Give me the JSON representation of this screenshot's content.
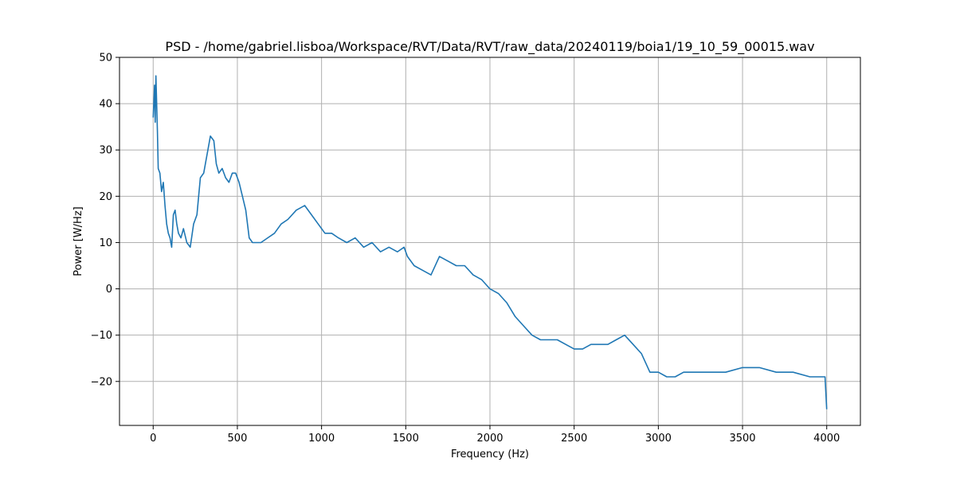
{
  "chart_data": {
    "type": "line",
    "title": "PSD - /home/gabriel.lisboa/Workspace/RVT/Data/RVT/raw_data/20240119/boia1/19_10_59_00015.wav",
    "xlabel": "Frequency (Hz)",
    "ylabel": "Power [W/Hz]",
    "xlim": [
      -200,
      4200
    ],
    "ylim": [
      -29.5,
      50
    ],
    "x_ticks": [
      0,
      500,
      1000,
      1500,
      2000,
      2500,
      3000,
      3500,
      4000
    ],
    "x_tick_labels": [
      "0",
      "500",
      "1000",
      "1500",
      "2000",
      "2500",
      "3000",
      "3500",
      "4000"
    ],
    "y_ticks": [
      -20,
      -10,
      0,
      10,
      20,
      30,
      40,
      50
    ],
    "y_tick_labels": [
      "−20",
      "−10",
      "0",
      "10",
      "20",
      "30",
      "40",
      "50"
    ],
    "grid": true,
    "legend": "none",
    "color": "#1f77b4",
    "series": [
      {
        "x": [
          0,
          8,
          12,
          16,
          20,
          25,
          30,
          40,
          50,
          60,
          70,
          80,
          90,
          100,
          110,
          120,
          130,
          140,
          150,
          165,
          180,
          200,
          220,
          240,
          260,
          280,
          300,
          320,
          340,
          360,
          375,
          390,
          410,
          430,
          450,
          470,
          490,
          510,
          530,
          550,
          570,
          590,
          610,
          640,
          680,
          720,
          760,
          800,
          850,
          900,
          940,
          980,
          1020,
          1060,
          1100,
          1150,
          1200,
          1250,
          1300,
          1350,
          1400,
          1450,
          1490,
          1510,
          1550,
          1600,
          1650,
          1700,
          1750,
          1800,
          1850,
          1900,
          1950,
          2000,
          2050,
          2100,
          2150,
          2200,
          2250,
          2300,
          2350,
          2400,
          2450,
          2500,
          2550,
          2600,
          2650,
          2700,
          2750,
          2800,
          2850,
          2900,
          2950,
          3000,
          3050,
          3100,
          3150,
          3200,
          3300,
          3400,
          3500,
          3600,
          3700,
          3800,
          3900,
          3950,
          3990,
          4000
        ],
        "y": [
          37,
          44,
          36,
          46,
          41,
          34,
          26,
          25,
          21,
          23,
          18,
          14,
          12,
          11,
          9,
          16,
          17,
          14,
          12,
          11,
          13,
          10,
          9,
          14,
          16,
          24,
          25,
          29,
          33,
          32,
          27,
          25,
          26,
          24,
          23,
          25,
          25,
          23,
          20,
          17,
          11,
          10,
          10,
          10,
          11,
          12,
          14,
          15,
          17,
          18,
          16,
          14,
          12,
          12,
          11,
          10,
          11,
          9,
          10,
          8,
          9,
          8,
          9,
          7,
          5,
          4,
          3,
          7,
          6,
          5,
          5,
          3,
          2,
          0,
          -1,
          -3,
          -6,
          -8,
          -10,
          -11,
          -11,
          -11,
          -12,
          -13,
          -13,
          -12,
          -12,
          -12,
          -11,
          -10,
          -12,
          -14,
          -18,
          -18,
          -19,
          -19,
          -18,
          -18,
          -18,
          -18,
          -17,
          -17,
          -18,
          -18,
          -19,
          -19,
          -19,
          -26
        ]
      }
    ]
  }
}
